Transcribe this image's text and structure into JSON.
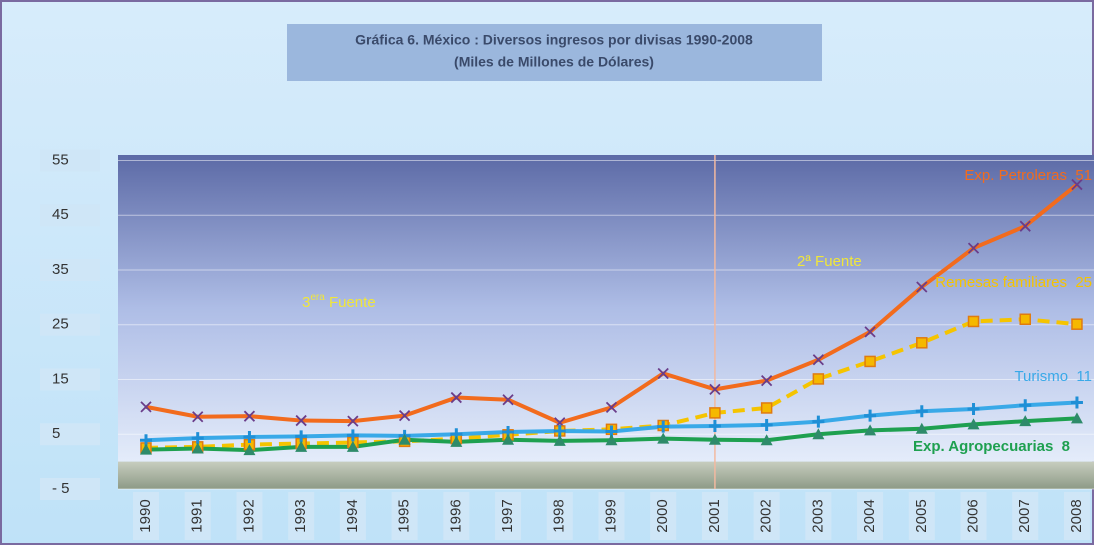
{
  "chart_data": {
    "type": "line",
    "title": "Gráfica 6. México : Diversos ingresos por divisas 1990-2008",
    "subtitle": "(Miles de Millones de Dólares)",
    "categories": [
      "1990",
      "1991",
      "1992",
      "1993",
      "1994",
      "1995",
      "1996",
      "1997",
      "1998",
      "1999",
      "2000",
      "2001",
      "2002",
      "2003",
      "2004",
      "2005",
      "2006",
      "2007",
      "2008"
    ],
    "ylim": [
      -5,
      56
    ],
    "yticks": [
      {
        "value": -5,
        "label": "- 5"
      },
      5,
      15,
      25,
      35,
      45,
      55
    ],
    "grid": true,
    "divider_category": "2001",
    "series": [
      {
        "name": "Exp. Petroleras",
        "end_label": "51",
        "color": "#f26b1d",
        "marker": "x",
        "marker_color": "#6a3d8a",
        "values": [
          10,
          8.2,
          8.3,
          7.5,
          7.4,
          8.4,
          11.7,
          11.3,
          7.1,
          9.9,
          16.1,
          13.2,
          14.8,
          18.6,
          23.7,
          31.9,
          39,
          43,
          50.6
        ]
      },
      {
        "name": "Remesas familiares",
        "end_label": "25",
        "color": "#f5c400",
        "dashed": true,
        "marker": "square",
        "marker_color": "#e07b10",
        "values": [
          2.5,
          2.7,
          3.1,
          3.3,
          3.5,
          3.7,
          4.2,
          4.9,
          5.6,
          5.9,
          6.6,
          8.9,
          9.8,
          15.1,
          18.3,
          21.7,
          25.6,
          26,
          25.1
        ]
      },
      {
        "name": "Turismo",
        "end_label": "11",
        "color": "#39a9e8",
        "marker": "plus",
        "marker_color": "#39a9e8",
        "values": [
          3.9,
          4.3,
          4.5,
          4.6,
          4.8,
          4.7,
          5.0,
          5.4,
          5.6,
          5.5,
          6.4,
          6.5,
          6.7,
          7.3,
          8.4,
          9.2,
          9.6,
          10.3,
          10.8
        ]
      },
      {
        "name": "Exp. Agropecuarias",
        "end_label": "8",
        "color": "#1ea050",
        "marker": "triangle",
        "marker_color": "#2e8b6a",
        "values": [
          2.2,
          2.4,
          2.1,
          2.7,
          2.7,
          4.0,
          3.6,
          4.0,
          3.8,
          3.9,
          4.2,
          4.0,
          3.9,
          5.0,
          5.7,
          6.0,
          6.8,
          7.4,
          7.9
        ]
      }
    ],
    "annotations": [
      {
        "text": "2ª Fuente"
      },
      {
        "parts": [
          "3",
          "era",
          " Fuente"
        ]
      }
    ]
  }
}
